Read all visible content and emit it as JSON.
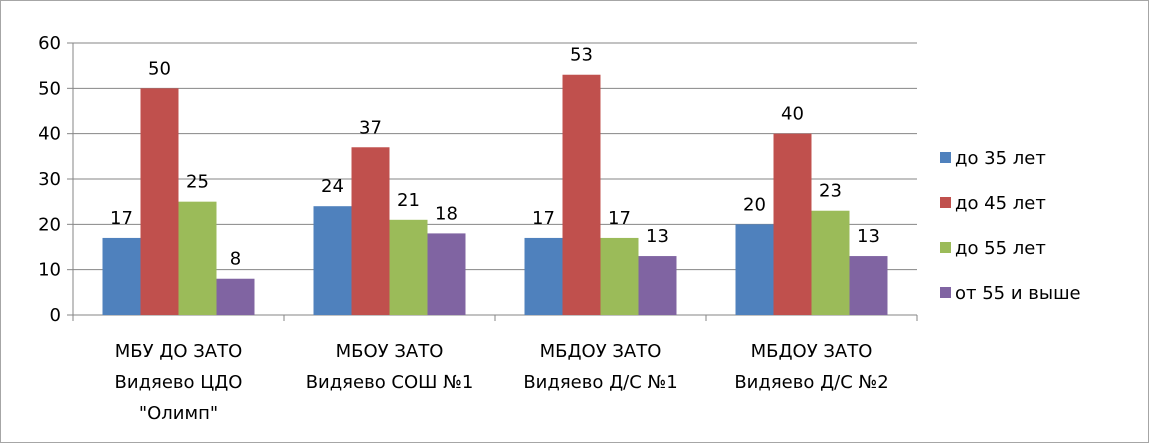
{
  "chart_data": {
    "type": "bar",
    "title": "",
    "xlabel": "",
    "ylabel": "",
    "ylim": [
      0,
      60
    ],
    "yticks": [
      0,
      10,
      20,
      30,
      40,
      50,
      60
    ],
    "grid": true,
    "legend_position": "right",
    "categories": [
      [
        "МБУ ДО ЗАТО",
        "Видяево ЦДО",
        "\"Олимп\""
      ],
      [
        "МБОУ ЗАТО",
        "Видяево СОШ №1"
      ],
      [
        "МБДОУ ЗАТО",
        "Видяево Д/С №1"
      ],
      [
        "МБДОУ ЗАТО",
        "Видяево Д/С №2"
      ]
    ],
    "series": [
      {
        "name": "до 35 лет",
        "color": "#4f81bd",
        "values": [
          17,
          24,
          17,
          20
        ]
      },
      {
        "name": "до 45 лет",
        "color": "#c0504d",
        "values": [
          50,
          37,
          53,
          40
        ]
      },
      {
        "name": "до 55 лет",
        "color": "#9bbb59",
        "values": [
          25,
          21,
          17,
          23
        ]
      },
      {
        "name": "от 55 и выше",
        "color": "#8064a2",
        "values": [
          8,
          18,
          13,
          13
        ]
      }
    ]
  }
}
